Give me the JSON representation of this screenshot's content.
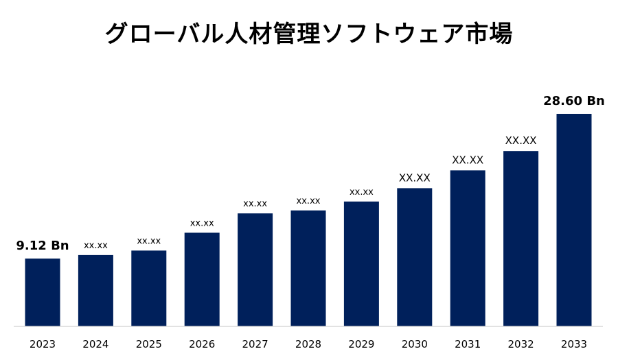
{
  "title": "グローバル人材管理ソフトウェア市場",
  "chart_data": {
    "type": "bar",
    "title": "グローバル人材管理ソフトウェア市場",
    "xlabel": "",
    "ylabel": "",
    "grid": false,
    "legend": "none",
    "color": "#00205b",
    "categories": [
      "2023",
      "2024",
      "2025",
      "2026",
      "2027",
      "2028",
      "2029",
      "2030",
      "2031",
      "2032",
      "2033"
    ],
    "values": [
      9.12,
      9.6,
      10.2,
      12.6,
      15.2,
      15.6,
      16.8,
      18.6,
      21.0,
      23.6,
      28.6
    ],
    "labels": [
      "9.12 Bn",
      "xx.xx",
      "xx.xx",
      "xx.xx",
      "xx.xx",
      "xx.xx",
      "xx.xx",
      "XX.XX",
      "XX.XX",
      "XX.XX",
      "28.60 Bn"
    ],
    "label_emphasis": [
      true,
      false,
      false,
      false,
      false,
      false,
      false,
      false,
      false,
      false,
      true
    ],
    "ylim": [
      0,
      28.6
    ]
  }
}
